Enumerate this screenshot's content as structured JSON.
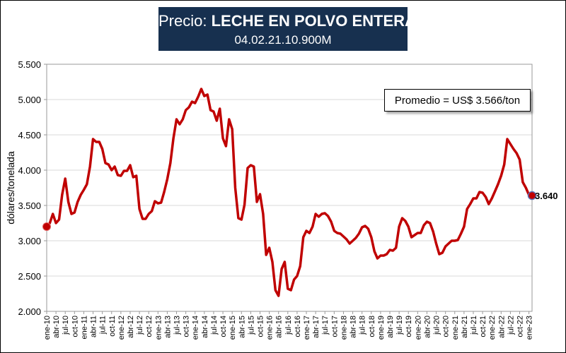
{
  "title": {
    "prefix": "Precio:",
    "product": "LECHE EN POLVO ENTERA",
    "code": "04.02.21.10.900M"
  },
  "annotation": "Promedio = US$ 3.566/ton",
  "last_value_label": "3.640",
  "colors": {
    "title_bg": "#17304f",
    "line": "#c00000",
    "marker": "#c00000"
  },
  "chart_data": {
    "type": "line",
    "title": "",
    "ylabel": "dólares/tonelada",
    "xlabel": "",
    "ylim": [
      2000,
      5500
    ],
    "yticks": [
      2000,
      2500,
      3000,
      3500,
      4000,
      4500,
      5000,
      5500
    ],
    "ytick_labels": [
      "2.000",
      "2.500",
      "3.000",
      "3.500",
      "4.000",
      "4.500",
      "5.000",
      "5.500"
    ],
    "grid": true,
    "xtick_labels": [
      "ene-10",
      "abr-10",
      "jul-10",
      "oct-10",
      "ene-11",
      "abr-11",
      "jul-11",
      "oct-11",
      "ene-12",
      "abr-12",
      "jul-12",
      "oct-12",
      "ene-13",
      "abr-13",
      "jul-13",
      "oct-13",
      "ene-14",
      "abr-14",
      "jul-14",
      "oct-14",
      "ene-15",
      "abr-15",
      "jul-15",
      "oct-15",
      "ene-16",
      "abr-16",
      "jul-16",
      "oct-16",
      "ene-17",
      "abr-17",
      "jul-17",
      "oct-17",
      "ene-18",
      "abr-18",
      "jul-18",
      "oct-18",
      "ene-19",
      "abr-19",
      "jul-19",
      "oct-19",
      "ene-20",
      "abr-20",
      "jul-20",
      "oct-20",
      "ene-21",
      "abr-21",
      "jul-21",
      "oct-21",
      "ene-22",
      "abr-22",
      "jul-22",
      "oct-22",
      "ene-23"
    ],
    "series": [
      {
        "name": "",
        "start": "ene-10",
        "values": [
          3200,
          3250,
          3380,
          3250,
          3300,
          3650,
          3880,
          3550,
          3380,
          3400,
          3550,
          3650,
          3720,
          3800,
          4050,
          4440,
          4400,
          4400,
          4300,
          4100,
          4080,
          4000,
          4050,
          3930,
          3920,
          3990,
          3990,
          4070,
          3900,
          3920,
          3450,
          3310,
          3310,
          3380,
          3420,
          3560,
          3530,
          3540,
          3690,
          3870,
          4100,
          4450,
          4720,
          4650,
          4720,
          4850,
          4890,
          4970,
          4950,
          5040,
          5150,
          5050,
          5070,
          4850,
          4830,
          4700,
          4870,
          4450,
          4340,
          4720,
          4580,
          3750,
          3320,
          3300,
          3510,
          4030,
          4070,
          4050,
          3550,
          3660,
          3380,
          2800,
          2900,
          2700,
          2300,
          2220,
          2600,
          2700,
          2320,
          2300,
          2450,
          2500,
          2640,
          3050,
          3140,
          3110,
          3200,
          3380,
          3340,
          3380,
          3390,
          3350,
          3270,
          3140,
          3110,
          3100,
          3060,
          3020,
          2960,
          3000,
          3040,
          3100,
          3190,
          3210,
          3170,
          3050,
          2850,
          2750,
          2790,
          2790,
          2810,
          2870,
          2860,
          2900,
          3200,
          3320,
          3280,
          3200,
          3050,
          3080,
          3110,
          3110,
          3220,
          3270,
          3250,
          3130,
          2960,
          2810,
          2830,
          2920,
          2960,
          3000,
          3000,
          3010,
          3100,
          3200,
          3450,
          3520,
          3600,
          3600,
          3690,
          3680,
          3620,
          3520,
          3600,
          3700,
          3800,
          3920,
          4080,
          4440,
          4370,
          4300,
          4240,
          4150,
          3830,
          3750,
          3650,
          3640
        ]
      }
    ],
    "last_value": 3640,
    "average": 3566
  }
}
